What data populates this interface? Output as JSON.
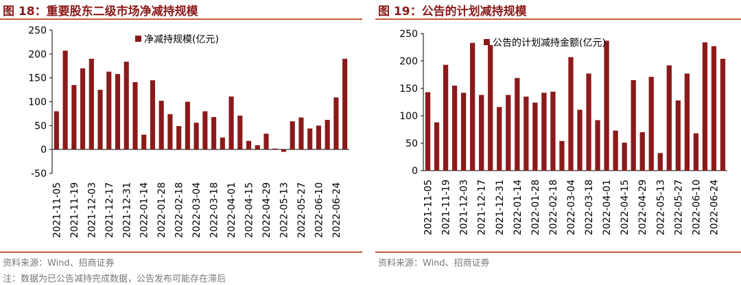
{
  "colors": {
    "bar": "#8B1A1A",
    "accent": "#C25A3C",
    "muted": "#777777"
  },
  "left_panel": {
    "title": "图 18：重要股东二级市场净减持规模",
    "source": "资料来源：Wind、招商证券",
    "note": "注：数据为已公告减持完成数据，公告发布可能存在滞后"
  },
  "right_panel": {
    "title": "图 19：公告的计划减持规模",
    "source": "资料来源：Wind、招商证券"
  },
  "chart_data": [
    {
      "type": "bar",
      "series": [
        {
          "name": "净减持规模(亿元)",
          "values": [
            80,
            207,
            135,
            170,
            190,
            125,
            163,
            158,
            184,
            141,
            31,
            145,
            102,
            74,
            49,
            100,
            56,
            80,
            68,
            25,
            111,
            71,
            18,
            9,
            33,
            2,
            -5,
            59,
            67,
            44,
            50,
            62,
            109,
            190
          ]
        }
      ],
      "x_tick_labels": [
        "2021-11-05",
        "2021-11-19",
        "2021-12-03",
        "2021-12-17",
        "2021-12-31",
        "2022-01-14",
        "2022-01-28",
        "2022-02-18",
        "2022-03-04",
        "2022-03-18",
        "2022-04-01",
        "2022-04-15",
        "2022-04-29",
        "2022-05-13",
        "2022-05-27",
        "2022-06-10",
        "2022-06-24"
      ],
      "y_ticks": [
        "-50",
        "0",
        "50",
        "100",
        "150",
        "200",
        "250"
      ],
      "ylim": [
        -50,
        250
      ],
      "legend_position": "top-center",
      "grid": false
    },
    {
      "type": "bar",
      "series": [
        {
          "name": "公告的计划减持金额(亿元)",
          "values": [
            143,
            88,
            193,
            155,
            142,
            233,
            138,
            229,
            116,
            138,
            169,
            135,
            124,
            142,
            144,
            54,
            207,
            111,
            177,
            92,
            237,
            73,
            51,
            165,
            70,
            171,
            32,
            192,
            128,
            177,
            68,
            234,
            227,
            204
          ]
        }
      ],
      "x_tick_labels": [
        "2021-11-05",
        "2021-11-19",
        "2021-12-03",
        "2021-12-17",
        "2021-12-31",
        "2022-01-14",
        "2022-01-28",
        "2022-02-18",
        "2022-03-04",
        "2022-03-18",
        "2022-04-01",
        "2022-04-15",
        "2022-04-29",
        "2022-05-13",
        "2022-05-27",
        "2022-06-10",
        "2022-06-24"
      ],
      "y_ticks": [
        "0",
        "50",
        "100",
        "150",
        "200",
        "250"
      ],
      "ylim": [
        0,
        250
      ],
      "legend_position": "top-center",
      "grid": false
    }
  ]
}
